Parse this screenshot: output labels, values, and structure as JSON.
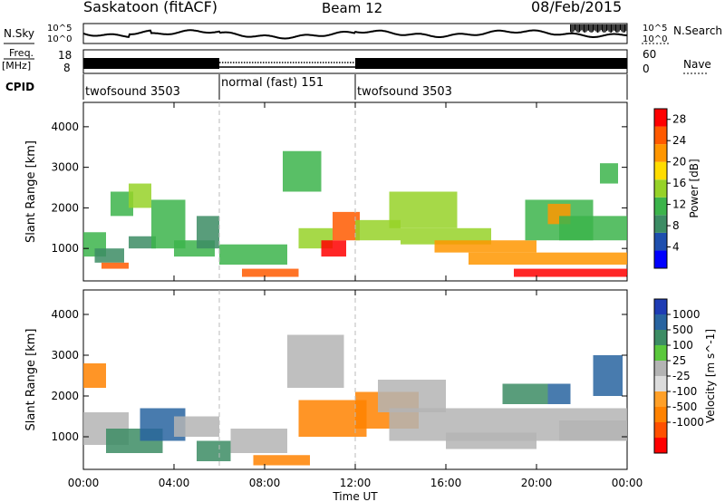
{
  "header": {
    "station": "Saskatoon (fitACF)",
    "beam": "Beam 12",
    "date": "08/Feb/2015"
  },
  "top_panels": {
    "nsky_label": "N.Sky",
    "nsky_ticks": [
      "10^5",
      "10^0"
    ],
    "nsearch_label": "N.Search",
    "nsearch_ticks": [
      "10^5",
      "10^0"
    ],
    "freq_label": "Freq.",
    "freq_unit": "[MHz]",
    "freq_ticks": [
      "18",
      "8"
    ],
    "nave_label": "Nave",
    "nave_ticks": [
      "60",
      "0"
    ],
    "cpid_label": "CPID",
    "cpid_segments": [
      {
        "label": "twofsound 3503",
        "start_hour": 0,
        "end_hour": 6
      },
      {
        "label": "normal (fast) 151",
        "start_hour": 6,
        "end_hour": 12
      },
      {
        "label": "twofsound 3503",
        "start_hour": 12,
        "end_hour": 24
      }
    ]
  },
  "colors": {
    "power": [
      "#0000ff",
      "#1e4fae",
      "#3c8c64",
      "#3cb44b",
      "#96d228",
      "#ffdc00",
      "#ff9600",
      "#ff5a00",
      "#ff0000"
    ],
    "velocity": [
      "#1e3cb4",
      "#2864a0",
      "#3c8c64",
      "#5ac83c",
      "#b4b4b4",
      "#dcdcdc",
      "#ffa028",
      "#ff8200",
      "#ff5000",
      "#ff0000"
    ]
  },
  "chart_data": [
    {
      "type": "heatmap",
      "parameter": "Power",
      "ylabel": "Slant Range [km]",
      "xlabel": "Time UT",
      "x_ticks": [
        "00:00",
        "04:00",
        "08:00",
        "12:00",
        "16:00",
        "20:00",
        "00:00"
      ],
      "xlim_hours": [
        0,
        24
      ],
      "y_ticks": [
        1000,
        2000,
        3000,
        4000
      ],
      "ylim": [
        200,
        4600
      ],
      "colorbar_label": "Power [dB]",
      "colorbar_ticks": [
        4,
        8,
        12,
        16,
        20,
        24,
        28
      ],
      "colorbar_range": [
        0,
        30
      ],
      "echo_regions": [
        {
          "t": [
            0.0,
            1.0
          ],
          "r": [
            800,
            1400
          ],
          "v": 10
        },
        {
          "t": [
            0.5,
            1.8
          ],
          "r": [
            650,
            1000
          ],
          "v": 8
        },
        {
          "t": [
            0.8,
            2.0
          ],
          "r": [
            500,
            650
          ],
          "v": 24
        },
        {
          "t": [
            1.2,
            2.2
          ],
          "r": [
            1800,
            2400
          ],
          "v": 12
        },
        {
          "t": [
            2.0,
            3.0
          ],
          "r": [
            2000,
            2600
          ],
          "v": 14
        },
        {
          "t": [
            2.0,
            3.2
          ],
          "r": [
            1000,
            1300
          ],
          "v": 8
        },
        {
          "t": [
            3.0,
            4.5
          ],
          "r": [
            1000,
            2200
          ],
          "v": 10
        },
        {
          "t": [
            4.0,
            5.8
          ],
          "r": [
            800,
            1200
          ],
          "v": 12
        },
        {
          "t": [
            5.0,
            6.0
          ],
          "r": [
            1000,
            1800
          ],
          "v": 8
        },
        {
          "t": [
            6.0,
            9.0
          ],
          "r": [
            600,
            1100
          ],
          "v": 10
        },
        {
          "t": [
            7.0,
            9.5
          ],
          "r": [
            300,
            500
          ],
          "v": 24
        },
        {
          "t": [
            8.8,
            10.5
          ],
          "r": [
            2400,
            3400
          ],
          "v": 10
        },
        {
          "t": [
            9.5,
            11.0
          ],
          "r": [
            1000,
            1500
          ],
          "v": 14
        },
        {
          "t": [
            10.5,
            11.6
          ],
          "r": [
            800,
            1200
          ],
          "v": 28
        },
        {
          "t": [
            11.0,
            12.2
          ],
          "r": [
            1200,
            1900
          ],
          "v": 26
        },
        {
          "t": [
            12.0,
            14.0
          ],
          "r": [
            1200,
            1700
          ],
          "v": 14
        },
        {
          "t": [
            13.5,
            16.5
          ],
          "r": [
            1500,
            2400
          ],
          "v": 14
        },
        {
          "t": [
            14.0,
            18.0
          ],
          "r": [
            1100,
            1500
          ],
          "v": 16
        },
        {
          "t": [
            15.5,
            20.0
          ],
          "r": [
            900,
            1200
          ],
          "v": 20
        },
        {
          "t": [
            17.0,
            24.0
          ],
          "r": [
            600,
            900
          ],
          "v": 22
        },
        {
          "t": [
            19.0,
            24.0
          ],
          "r": [
            300,
            500
          ],
          "v": 28
        },
        {
          "t": [
            19.5,
            22.5
          ],
          "r": [
            1200,
            2200
          ],
          "v": 10
        },
        {
          "t": [
            20.5,
            21.5
          ],
          "r": [
            1600,
            2100
          ],
          "v": 22
        },
        {
          "t": [
            21.0,
            24.0
          ],
          "r": [
            1200,
            1800
          ],
          "v": 12
        },
        {
          "t": [
            22.8,
            23.6
          ],
          "r": [
            2600,
            3100
          ],
          "v": 10
        }
      ]
    },
    {
      "type": "heatmap",
      "parameter": "Velocity",
      "ylabel": "Slant Range [km]",
      "xlabel": "Time UT",
      "x_ticks": [
        "00:00",
        "04:00",
        "08:00",
        "12:00",
        "16:00",
        "20:00",
        "00:00"
      ],
      "xlim_hours": [
        0,
        24
      ],
      "y_ticks": [
        1000,
        2000,
        3000,
        4000
      ],
      "ylim": [
        200,
        4600
      ],
      "colorbar_label": "Velocity [m s^-1]",
      "colorbar_ticks": [
        "1000",
        "500",
        "100",
        "25",
        "-25",
        "-100",
        "-500",
        "-1000"
      ],
      "echo_regions": [
        {
          "t": [
            0.0,
            1.0
          ],
          "r": [
            2200,
            2800
          ],
          "v": -300
        },
        {
          "t": [
            0.0,
            2.0
          ],
          "r": [
            800,
            1600
          ],
          "v": 0
        },
        {
          "t": [
            1.0,
            3.5
          ],
          "r": [
            600,
            1200
          ],
          "v": 80
        },
        {
          "t": [
            2.5,
            4.5
          ],
          "r": [
            900,
            1700
          ],
          "v": 300
        },
        {
          "t": [
            4.0,
            6.0
          ],
          "r": [
            1000,
            1500
          ],
          "v": 0
        },
        {
          "t": [
            5.0,
            6.5
          ],
          "r": [
            400,
            900
          ],
          "v": 80
        },
        {
          "t": [
            6.5,
            9.0
          ],
          "r": [
            600,
            1200
          ],
          "v": 0
        },
        {
          "t": [
            7.5,
            10.0
          ],
          "r": [
            300,
            550
          ],
          "v": -200
        },
        {
          "t": [
            9.0,
            11.5
          ],
          "r": [
            2200,
            3500
          ],
          "v": 0
        },
        {
          "t": [
            9.5,
            12.5
          ],
          "r": [
            1000,
            1900
          ],
          "v": -200
        },
        {
          "t": [
            12.0,
            14.8
          ],
          "r": [
            1200,
            2100
          ],
          "v": -100
        },
        {
          "t": [
            13.5,
            24.0
          ],
          "r": [
            900,
            1700
          ],
          "v": 0
        },
        {
          "t": [
            13.0,
            16.0
          ],
          "r": [
            1600,
            2400
          ],
          "v": 5
        },
        {
          "t": [
            16.0,
            20.0
          ],
          "r": [
            700,
            1100
          ],
          "v": 5
        },
        {
          "t": [
            18.5,
            20.5
          ],
          "r": [
            1800,
            2300
          ],
          "v": 60
        },
        {
          "t": [
            20.5,
            21.5
          ],
          "r": [
            1800,
            2300
          ],
          "v": 700
        },
        {
          "t": [
            22.5,
            23.8
          ],
          "r": [
            2000,
            3000
          ],
          "v": 300
        },
        {
          "t": [
            21.0,
            24.0
          ],
          "r": [
            900,
            1400
          ],
          "v": 0
        }
      ]
    }
  ]
}
